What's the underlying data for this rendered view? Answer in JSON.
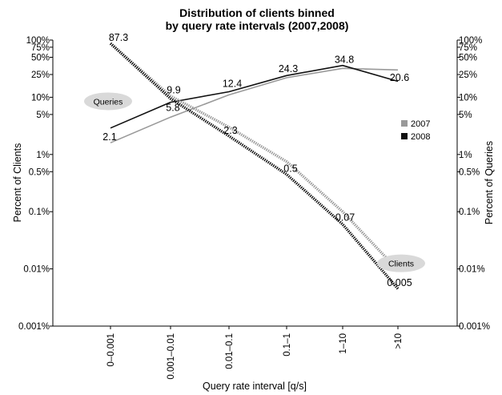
{
  "chart_data": {
    "type": "line",
    "title_lines": [
      "Distribution of clients binned",
      "by query rate intervals (2007,2008)"
    ],
    "xlabel": "Query rate interval [q/s]",
    "ylabel_left": "Percent of Clients",
    "ylabel_right": "Percent of Queries",
    "categories": [
      "0–0.001",
      "0.001–0.01",
      "0.01–0.1",
      "0.1–1",
      "1–10",
      ">10"
    ],
    "yscale": "log",
    "ylim": [
      0.001,
      100
    ],
    "ytick_values": [
      100,
      75,
      50,
      25,
      10,
      5,
      1,
      0.5,
      0.1,
      0.01,
      0.001
    ],
    "ytick_labels": [
      "100%",
      "75%",
      "50%",
      "25%",
      "10%",
      "5%",
      "1%",
      "0.5%",
      "0.1%",
      "0.01%",
      "0.001%"
    ],
    "legend": {
      "position": "right",
      "entries": [
        {
          "label": "2007",
          "color": "#999999"
        },
        {
          "label": "2008",
          "color": "#111111"
        }
      ]
    },
    "series": [
      {
        "group": "Queries",
        "year": "2007",
        "style": "solid",
        "color": "#999999",
        "values": [
          1.6,
          4.5,
          11,
          22,
          32,
          30
        ]
      },
      {
        "group": "Queries",
        "year": "2008",
        "style": "solid",
        "color": "#111111",
        "values": [
          2.9,
          8.2,
          12.5,
          24,
          36,
          19
        ]
      },
      {
        "group": "Clients",
        "year": "2007",
        "style": "dotted",
        "color": "#999999",
        "values": [
          87.3,
          10.5,
          3.0,
          0.75,
          0.1,
          0.0095
        ]
      },
      {
        "group": "Clients",
        "year": "2008",
        "style": "dotted",
        "color": "#111111",
        "values": [
          87.3,
          9.5,
          2.1,
          0.45,
          0.06,
          0.0045
        ]
      }
    ],
    "data_labels": [
      {
        "text": "87.3",
        "cat": 0,
        "value": 87.3,
        "dx": 10,
        "dy": -3
      },
      {
        "text": "9.9",
        "cat": 1,
        "value": 9.9,
        "dx": 4,
        "dy": -5
      },
      {
        "text": "5.8",
        "cat": 1,
        "value": 5.8,
        "dx": 3,
        "dy": 0
      },
      {
        "text": "2.1",
        "cat": 0,
        "value": 2.1,
        "dx": -1,
        "dy": 5
      },
      {
        "text": "12.4",
        "cat": 2,
        "value": 12.4,
        "dx": 4,
        "dy": -6
      },
      {
        "text": "2.3",
        "cat": 2,
        "value": 2.3,
        "dx": 2,
        "dy": 0
      },
      {
        "text": "24.3",
        "cat": 3,
        "value": 24.3,
        "dx": 2,
        "dy": -4
      },
      {
        "text": "0.5",
        "cat": 3,
        "value": 0.5,
        "dx": 5,
        "dy": 0
      },
      {
        "text": "34.8",
        "cat": 4,
        "value": 34.8,
        "dx": 2,
        "dy": -4
      },
      {
        "text": "0.07",
        "cat": 4,
        "value": 0.07,
        "dx": 3,
        "dy": 0
      },
      {
        "text": "20.6",
        "cat": 5,
        "value": 20.6,
        "dx": 2,
        "dy": 2
      },
      {
        "text": "0.005",
        "cat": 5,
        "value": 0.005,
        "dx": 2,
        "dy": 0
      }
    ],
    "annotations": [
      {
        "text": "Queries",
        "anchor_cat": 0,
        "anchor_value": 8.5,
        "dx": -3
      },
      {
        "text": "Clients",
        "anchor_cat": 5,
        "anchor_value": 0.0125,
        "dx": 4
      }
    ]
  }
}
